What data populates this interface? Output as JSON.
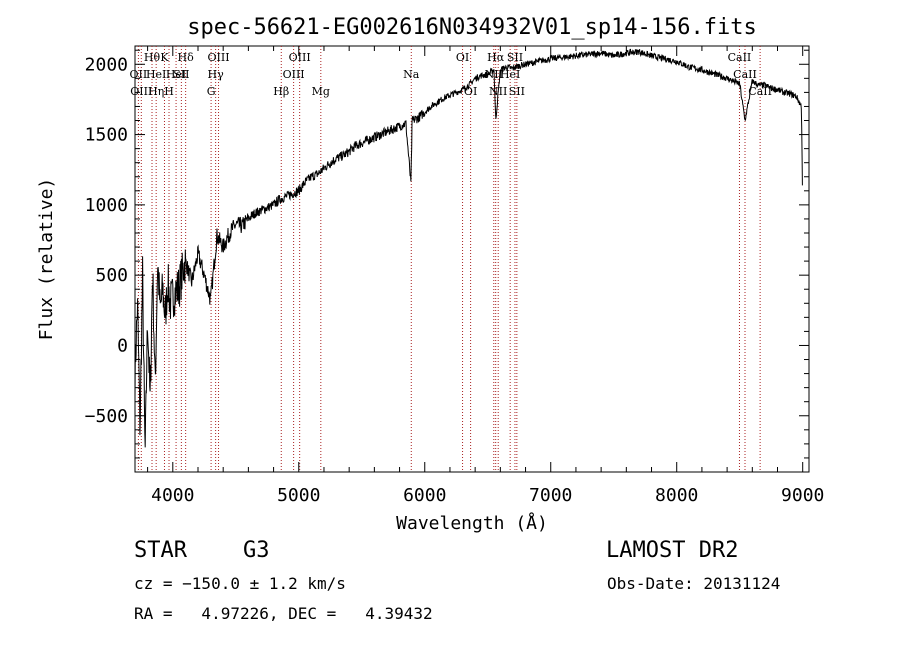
{
  "chart_data": {
    "type": "line",
    "title": "spec-56621-EG002616N034932V01_sp14-156.fits",
    "xlabel": "Wavelength (Å)",
    "ylabel": "Flux (relative)",
    "xlim": [
      3700,
      9050
    ],
    "ylim": [
      -900,
      2130
    ],
    "xticks": [
      4000,
      5000,
      6000,
      7000,
      8000,
      9000
    ],
    "xtick_labels": [
      "4000",
      "5000",
      "6000",
      "7000",
      "8000",
      "9000"
    ],
    "yticks": [
      -500,
      0,
      500,
      1000,
      1500,
      2000
    ],
    "ytick_labels": [
      "−500",
      "0",
      "500",
      "1000",
      "1500",
      "2000"
    ],
    "grid": false,
    "series": [
      {
        "x": [
          3700,
          3720,
          3740,
          3760,
          3780,
          3800,
          3820,
          3840,
          3860,
          3880,
          3900,
          3920,
          3940,
          3960,
          3980,
          4000,
          4050,
          4100,
          4150,
          4200,
          4250,
          4300,
          4350,
          4400,
          4450,
          4500,
          4550,
          4600,
          4650,
          4700,
          4750,
          4800,
          4850,
          4900,
          4950,
          5000,
          5050,
          5100,
          5150,
          5200,
          5250,
          5300,
          5350,
          5400,
          5450,
          5500,
          5550,
          5600,
          5650,
          5700,
          5750,
          5800,
          5850,
          5890,
          5900,
          5950,
          6000,
          6050,
          6100,
          6150,
          6200,
          6250,
          6300,
          6350,
          6400,
          6450,
          6500,
          6550,
          6563,
          6600,
          6650,
          6700,
          6750,
          6800,
          6850,
          6900,
          6950,
          7000,
          7100,
          7200,
          7300,
          7400,
          7500,
          7600,
          7700,
          7800,
          7900,
          8000,
          8100,
          8200,
          8300,
          8400,
          8450,
          8500,
          8542,
          8600,
          8650,
          8700,
          8750,
          8800,
          8850,
          8900,
          8950,
          8990,
          9000
        ],
        "y": [
          -200,
          300,
          -600,
          500,
          -800,
          200,
          -400,
          550,
          -300,
          600,
          250,
          400,
          200,
          450,
          300,
          350,
          420,
          600,
          450,
          650,
          500,
          320,
          780,
          700,
          800,
          860,
          850,
          900,
          940,
          960,
          980,
          1000,
          1040,
          1060,
          1080,
          1100,
          1160,
          1200,
          1220,
          1260,
          1300,
          1330,
          1350,
          1380,
          1420,
          1440,
          1460,
          1480,
          1500,
          1520,
          1540,
          1560,
          1580,
          1150,
          1600,
          1620,
          1660,
          1700,
          1730,
          1760,
          1780,
          1800,
          1820,
          1850,
          1900,
          1920,
          1930,
          1960,
          1600,
          1960,
          1980,
          1970,
          1990,
          2000,
          2010,
          2020,
          2030,
          2040,
          2050,
          2060,
          2070,
          2080,
          2060,
          2080,
          2090,
          2060,
          2040,
          2020,
          1980,
          1960,
          1930,
          1900,
          1880,
          1860,
          1600,
          1880,
          1850,
          1850,
          1830,
          1820,
          1800,
          1790,
          1770,
          1700,
          1000
        ]
      }
    ],
    "lines": [
      {
        "wave": 3727,
        "labels": [
          "OII"
        ],
        "rows": [
          1
        ]
      },
      {
        "wave": 3750,
        "labels": [
          "OIII"
        ],
        "rows": [
          2
        ]
      },
      {
        "wave": 3835,
        "labels": [
          "Hθ"
        ],
        "rows": [
          0
        ]
      },
      {
        "wave": 3868,
        "labels": [
          "HeI",
          "Hη"
        ],
        "rows": [
          1,
          2
        ]
      },
      {
        "wave": 3934,
        "labels": [
          "K"
        ],
        "rows": [
          0
        ]
      },
      {
        "wave": 3970,
        "labels": [
          "H"
        ],
        "rows": [
          2
        ]
      },
      {
        "wave": 4026,
        "labels": [
          "HeI"
        ],
        "rows": [
          1
        ]
      },
      {
        "wave": 4068,
        "labels": [
          "SII"
        ],
        "rows": [
          1
        ]
      },
      {
        "wave": 4102,
        "labels": [
          "Hδ"
        ],
        "rows": [
          0
        ]
      },
      {
        "wave": 4304,
        "labels": [
          "G"
        ],
        "rows": [
          2
        ]
      },
      {
        "wave": 4340,
        "labels": [
          "Hγ"
        ],
        "rows": [
          1
        ]
      },
      {
        "wave": 4363,
        "labels": [
          "OIII"
        ],
        "rows": [
          0
        ]
      },
      {
        "wave": 4861,
        "labels": [
          "Hβ"
        ],
        "rows": [
          2
        ]
      },
      {
        "wave": 4959,
        "labels": [
          "OIII"
        ],
        "rows": [
          1
        ]
      },
      {
        "wave": 5007,
        "labels": [
          "OIII"
        ],
        "rows": [
          0
        ]
      },
      {
        "wave": 5175,
        "labels": [
          "Mg"
        ],
        "rows": [
          2
        ]
      },
      {
        "wave": 5893,
        "labels": [
          "Na"
        ],
        "rows": [
          1
        ]
      },
      {
        "wave": 6300,
        "labels": [
          "OI"
        ],
        "rows": [
          0
        ]
      },
      {
        "wave": 6364,
        "labels": [
          "OI"
        ],
        "rows": [
          2
        ]
      },
      {
        "wave": 6548,
        "labels": [
          "NII"
        ],
        "rows": [
          1
        ]
      },
      {
        "wave": 6563,
        "labels": [
          "Hα"
        ],
        "rows": [
          0
        ]
      },
      {
        "wave": 6583,
        "labels": [
          "NII"
        ],
        "rows": [
          2
        ]
      },
      {
        "wave": 6678,
        "labels": [
          "HeI"
        ],
        "rows": [
          1
        ]
      },
      {
        "wave": 6716,
        "labels": [
          "SII"
        ],
        "rows": [
          0
        ]
      },
      {
        "wave": 6731,
        "labels": [
          "SII"
        ],
        "rows": [
          2
        ]
      },
      {
        "wave": 8498,
        "labels": [
          "CaII"
        ],
        "rows": [
          0
        ]
      },
      {
        "wave": 8542,
        "labels": [
          "CaII"
        ],
        "rows": [
          1
        ]
      },
      {
        "wave": 8662,
        "labels": [
          "CaII"
        ],
        "rows": [
          2
        ]
      }
    ],
    "line_color": "#aa2222"
  },
  "info": {
    "class_label": "STAR",
    "subclass": "G3",
    "survey": "LAMOST DR2",
    "cz": "cz = −150.0 ± 1.2 km/s",
    "obs_date": "Obs-Date: 20131124",
    "coords": "RA =   4.97226, DEC =   4.39432"
  }
}
